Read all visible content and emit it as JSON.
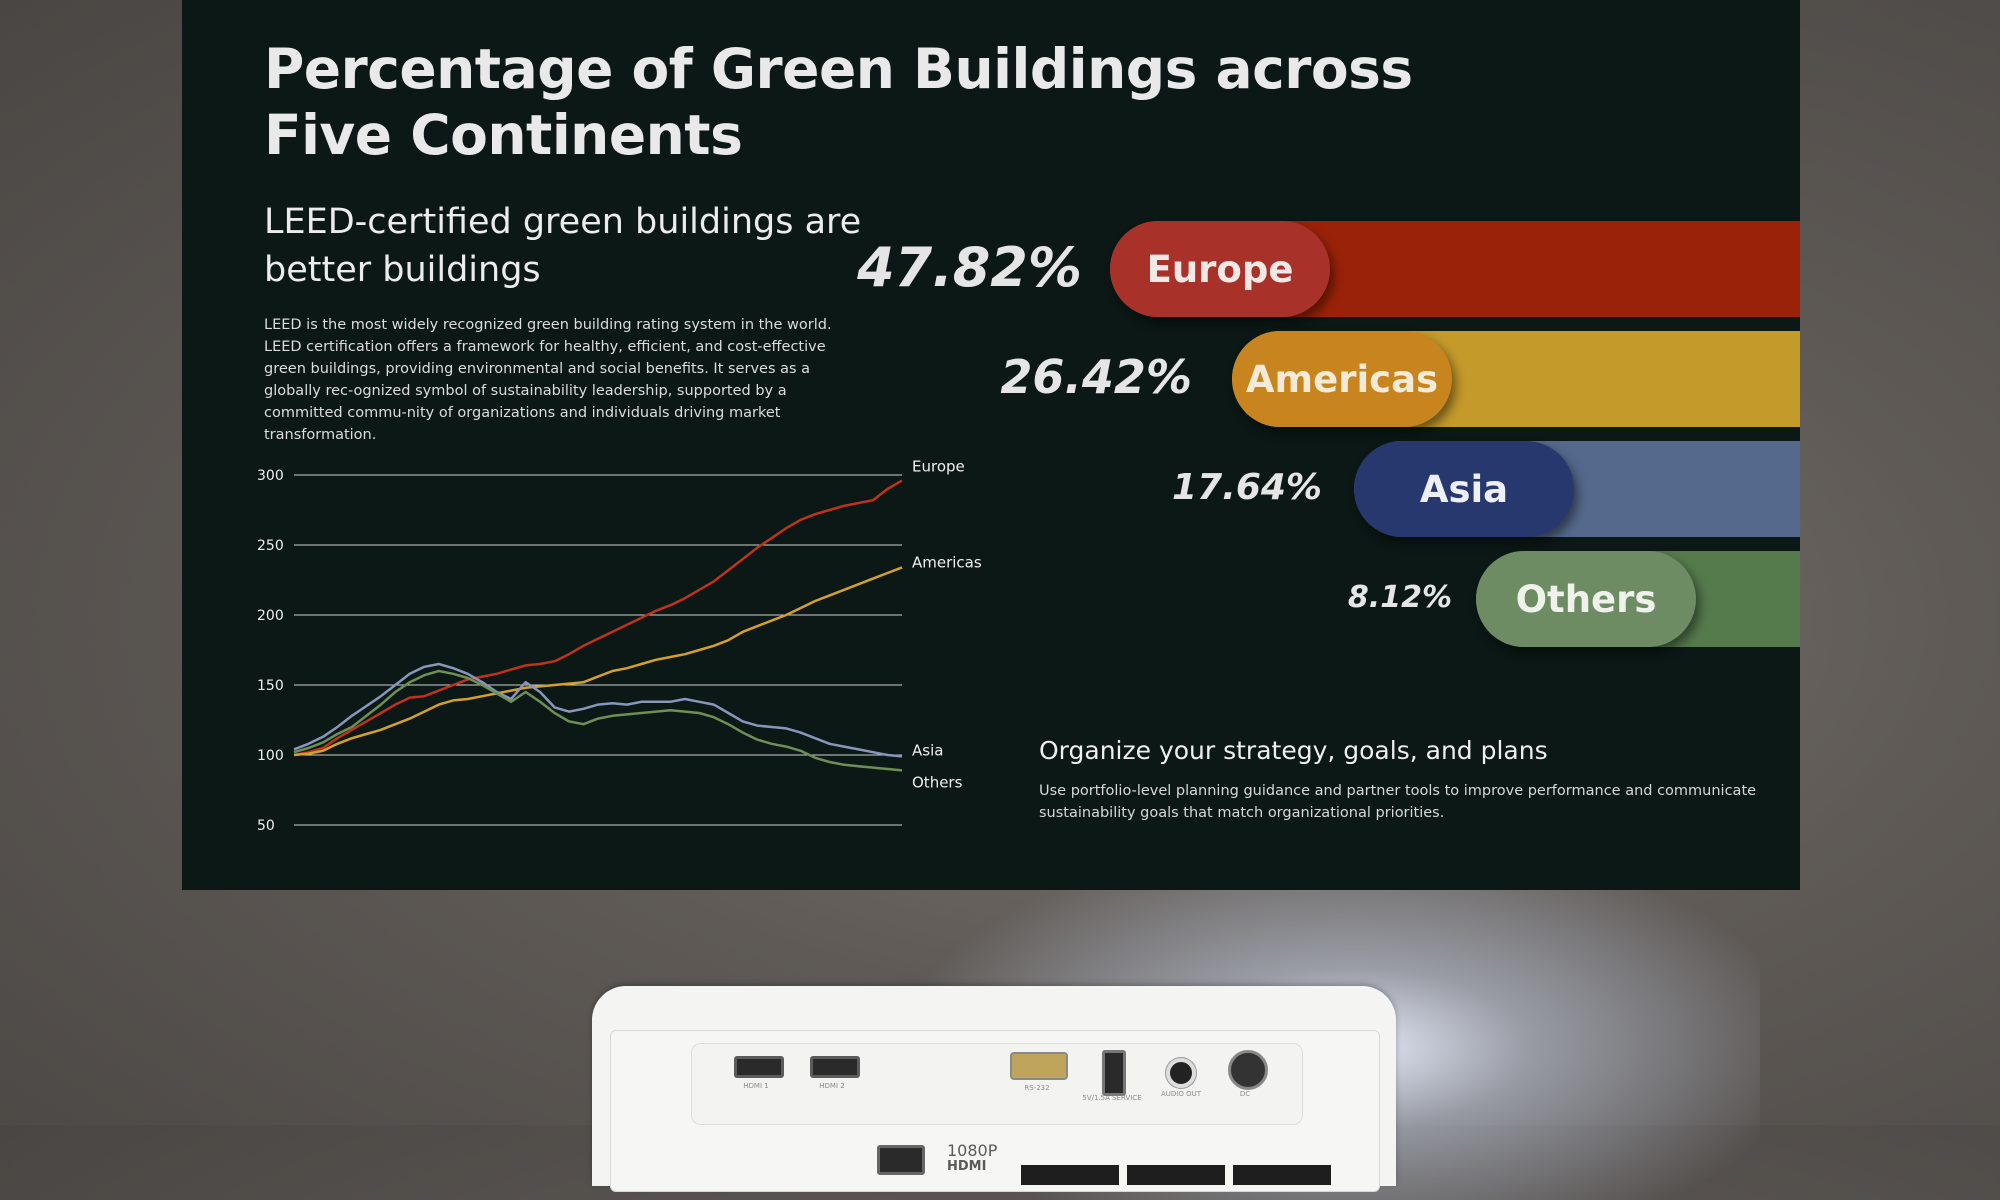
{
  "screen": {
    "title": "Percentage of Green Buildings across Five Continents",
    "subtitle": "LEED-certified green buildings are better buildings",
    "body": "LEED is the most widely recognized green building rating system in the world. LEED certification offers a framework for healthy, efficient, and cost-effective green buildings, providing environmental and social benefits. It serves as a globally rec-ognized symbol of sustainability leadership, supported by a committed commu-nity of organizations and individuals driving market transformation.",
    "organize_title": "Organize your strategy, goals, and plans",
    "organize_text": "Use portfolio-level planning guidance and partner tools to improve performance and communicate sustainability goals that match organizational priorities."
  },
  "bars": [
    {
      "label": "Europe",
      "percent_text": "47.82%",
      "value": 47.82,
      "track_color": "#9a2208",
      "pill_color": "#a8322a",
      "text_color": "#f2e9e6"
    },
    {
      "label": "Americas",
      "percent_text": "26.42%",
      "value": 26.42,
      "track_color": "#c49a2a",
      "pill_color": "#c8841e",
      "text_color": "#f4ead8"
    },
    {
      "label": "Asia",
      "percent_text": "17.64%",
      "value": 17.64,
      "track_color": "#55698c",
      "pill_color": "#26386e",
      "text_color": "#eef0f6"
    },
    {
      "label": "Others",
      "percent_text": "8.12%",
      "value": 8.12,
      "track_color": "#557a4c",
      "pill_color": "#6e8c64",
      "text_color": "#eef2ea"
    }
  ],
  "chart_data": {
    "type": "line",
    "title": "",
    "xlabel": "",
    "ylabel": "",
    "ylim": [
      50,
      300
    ],
    "yticks": [
      300,
      250,
      200,
      150,
      100,
      50
    ],
    "grid": true,
    "legend": "right, at line ends",
    "series": [
      {
        "name": "Europe",
        "color": "#c0321a",
        "values": [
          100,
          102,
          105,
          112,
          118,
          124,
          130,
          136,
          141,
          142,
          146,
          150,
          154,
          156,
          158,
          161,
          164,
          165,
          167,
          172,
          178,
          183,
          188,
          193,
          198,
          203,
          207,
          212,
          218,
          224,
          232,
          240,
          248,
          255,
          262,
          268,
          272,
          275,
          278,
          280,
          282,
          290,
          296
        ]
      },
      {
        "name": "Americas",
        "color": "#d4a02a",
        "values": [
          100,
          101,
          103,
          108,
          112,
          115,
          118,
          122,
          126,
          131,
          136,
          139,
          140,
          142,
          144,
          146,
          148,
          149,
          150,
          151,
          152,
          156,
          160,
          162,
          165,
          168,
          170,
          172,
          175,
          178,
          182,
          188,
          192,
          196,
          200,
          205,
          210,
          214,
          218,
          222,
          226,
          230,
          234
        ]
      },
      {
        "name": "Asia",
        "color": "#8896bb",
        "values": [
          104,
          108,
          113,
          120,
          128,
          135,
          142,
          150,
          158,
          163,
          165,
          162,
          158,
          152,
          145,
          140,
          152,
          145,
          134,
          131,
          133,
          136,
          137,
          136,
          138,
          138,
          138,
          140,
          138,
          136,
          130,
          124,
          121,
          120,
          119,
          116,
          112,
          108,
          106,
          104,
          102,
          100,
          99
        ]
      },
      {
        "name": "Others",
        "color": "#6e8f55",
        "values": [
          102,
          105,
          109,
          115,
          120,
          128,
          136,
          145,
          152,
          157,
          160,
          158,
          155,
          150,
          144,
          138,
          145,
          138,
          130,
          124,
          122,
          126,
          128,
          129,
          130,
          131,
          132,
          131,
          130,
          127,
          122,
          116,
          111,
          108,
          106,
          103,
          98,
          95,
          93,
          92,
          91,
          90,
          89
        ]
      }
    ]
  },
  "projector": {
    "ports": [
      "HDMI 1",
      "HDMI 2",
      "RS-232",
      "5V/1.5A SERVICE",
      "AUDIO OUT",
      "DC"
    ],
    "badge": "1080P",
    "badge_sub": "HDMI"
  }
}
